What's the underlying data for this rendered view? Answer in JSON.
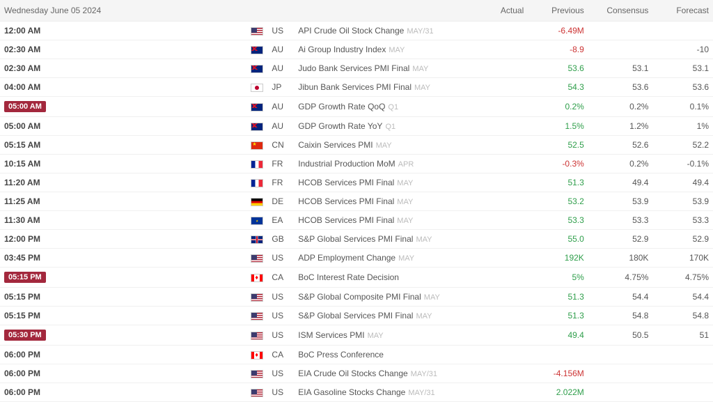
{
  "header": {
    "date": "Wednesday June 05 2024",
    "cols": {
      "actual": "Actual",
      "previous": "Previous",
      "consensus": "Consensus",
      "forecast": "Forecast"
    }
  },
  "rows": [
    {
      "time": "12:00 AM",
      "highlight": false,
      "flag": "us",
      "country": "US",
      "event": "API Crude Oil Stock Change",
      "period": "MAY/31",
      "actual": "",
      "previous": "-6.49M",
      "previous_sign": "neg",
      "consensus": "",
      "forecast": ""
    },
    {
      "time": "02:30 AM",
      "highlight": false,
      "flag": "au",
      "country": "AU",
      "event": "Ai Group Industry Index",
      "period": "MAY",
      "actual": "",
      "previous": "-8.9",
      "previous_sign": "neg",
      "consensus": "",
      "forecast": "-10"
    },
    {
      "time": "02:30 AM",
      "highlight": false,
      "flag": "au",
      "country": "AU",
      "event": "Judo Bank Services PMI Final",
      "period": "MAY",
      "actual": "",
      "previous": "53.6",
      "previous_sign": "pos",
      "consensus": "53.1",
      "forecast": "53.1"
    },
    {
      "time": "04:00 AM",
      "highlight": false,
      "flag": "jp",
      "country": "JP",
      "event": "Jibun Bank Services PMI Final",
      "period": "MAY",
      "actual": "",
      "previous": "54.3",
      "previous_sign": "pos",
      "consensus": "53.6",
      "forecast": "53.6"
    },
    {
      "time": "05:00 AM",
      "highlight": true,
      "flag": "au",
      "country": "AU",
      "event": "GDP Growth Rate QoQ",
      "period": "Q1",
      "actual": "",
      "previous": "0.2%",
      "previous_sign": "pos",
      "consensus": "0.2%",
      "forecast": "0.1%"
    },
    {
      "time": "05:00 AM",
      "highlight": false,
      "flag": "au",
      "country": "AU",
      "event": "GDP Growth Rate YoY",
      "period": "Q1",
      "actual": "",
      "previous": "1.5%",
      "previous_sign": "pos",
      "consensus": "1.2%",
      "forecast": "1%"
    },
    {
      "time": "05:15 AM",
      "highlight": false,
      "flag": "cn",
      "country": "CN",
      "event": "Caixin Services PMI",
      "period": "MAY",
      "actual": "",
      "previous": "52.5",
      "previous_sign": "pos",
      "consensus": "52.6",
      "forecast": "52.2"
    },
    {
      "time": "10:15 AM",
      "highlight": false,
      "flag": "fr",
      "country": "FR",
      "event": "Industrial Production MoM",
      "period": "APR",
      "actual": "",
      "previous": "-0.3%",
      "previous_sign": "neg",
      "consensus": "0.2%",
      "forecast": "-0.1%"
    },
    {
      "time": "11:20 AM",
      "highlight": false,
      "flag": "fr",
      "country": "FR",
      "event": "HCOB Services PMI Final",
      "period": "MAY",
      "actual": "",
      "previous": "51.3",
      "previous_sign": "pos",
      "consensus": "49.4",
      "forecast": "49.4"
    },
    {
      "time": "11:25 AM",
      "highlight": false,
      "flag": "de",
      "country": "DE",
      "event": "HCOB Services PMI Final",
      "period": "MAY",
      "actual": "",
      "previous": "53.2",
      "previous_sign": "pos",
      "consensus": "53.9",
      "forecast": "53.9"
    },
    {
      "time": "11:30 AM",
      "highlight": false,
      "flag": "ea",
      "country": "EA",
      "event": "HCOB Services PMI Final",
      "period": "MAY",
      "actual": "",
      "previous": "53.3",
      "previous_sign": "pos",
      "consensus": "53.3",
      "forecast": "53.3"
    },
    {
      "time": "12:00 PM",
      "highlight": false,
      "flag": "gb",
      "country": "GB",
      "event": "S&P Global Services PMI Final",
      "period": "MAY",
      "actual": "",
      "previous": "55.0",
      "previous_sign": "pos",
      "consensus": "52.9",
      "forecast": "52.9"
    },
    {
      "time": "03:45 PM",
      "highlight": false,
      "flag": "us",
      "country": "US",
      "event": "ADP Employment Change",
      "period": "MAY",
      "actual": "",
      "previous": "192K",
      "previous_sign": "pos",
      "consensus": "180K",
      "forecast": "170K"
    },
    {
      "time": "05:15 PM",
      "highlight": true,
      "flag": "ca",
      "country": "CA",
      "event": "BoC Interest Rate Decision",
      "period": "",
      "actual": "",
      "previous": "5%",
      "previous_sign": "pos",
      "consensus": "4.75%",
      "forecast": "4.75%"
    },
    {
      "time": "05:15 PM",
      "highlight": false,
      "flag": "us",
      "country": "US",
      "event": "S&P Global Composite PMI Final",
      "period": "MAY",
      "actual": "",
      "previous": "51.3",
      "previous_sign": "pos",
      "consensus": "54.4",
      "forecast": "54.4"
    },
    {
      "time": "05:15 PM",
      "highlight": false,
      "flag": "us",
      "country": "US",
      "event": "S&P Global Services PMI Final",
      "period": "MAY",
      "actual": "",
      "previous": "51.3",
      "previous_sign": "pos",
      "consensus": "54.8",
      "forecast": "54.8"
    },
    {
      "time": "05:30 PM",
      "highlight": true,
      "flag": "us",
      "country": "US",
      "event": "ISM Services PMI",
      "period": "MAY",
      "actual": "",
      "previous": "49.4",
      "previous_sign": "pos",
      "consensus": "50.5",
      "forecast": "51"
    },
    {
      "time": "06:00 PM",
      "highlight": false,
      "flag": "ca",
      "country": "CA",
      "event": "BoC Press Conference",
      "period": "",
      "actual": "",
      "previous": "",
      "previous_sign": "",
      "consensus": "",
      "forecast": ""
    },
    {
      "time": "06:00 PM",
      "highlight": false,
      "flag": "us",
      "country": "US",
      "event": "EIA Crude Oil Stocks Change",
      "period": "MAY/31",
      "actual": "",
      "previous": "-4.156M",
      "previous_sign": "neg",
      "consensus": "",
      "forecast": ""
    },
    {
      "time": "06:00 PM",
      "highlight": false,
      "flag": "us",
      "country": "US",
      "event": "EIA Gasoline Stocks Change",
      "period": "MAY/31",
      "actual": "",
      "previous": "2.022M",
      "previous_sign": "pos",
      "consensus": "",
      "forecast": ""
    }
  ]
}
